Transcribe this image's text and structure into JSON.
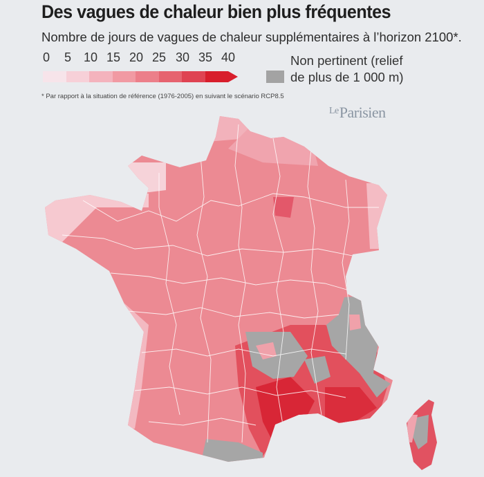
{
  "header": {
    "title": "Des vagues de chaleur bien plus fréquentes",
    "subtitle": "Nombre de jours de vagues de chaleur supplémentaires à l’horizon 2100*."
  },
  "legend": {
    "scale_labels": [
      "0",
      "5",
      "10",
      "15",
      "20",
      "25",
      "30",
      "35",
      "40"
    ],
    "scale_colors": [
      "#f7e4ea",
      "#f7d0d8",
      "#f4b3bd",
      "#f19aa3",
      "#ec7f8a",
      "#e6636f",
      "#df4352",
      "#d81e2c"
    ],
    "not_relevant_line1": "Non pertinent (relief",
    "not_relevant_line2": "de plus de 1 000 m)",
    "not_relevant_color": "#a3a3a3"
  },
  "footnote": "* Par rapport à la situation de référence (1976-2005) en suivant le scénario RCP8.5",
  "brand": {
    "prefix": "Le",
    "name": "Parisien"
  }
}
